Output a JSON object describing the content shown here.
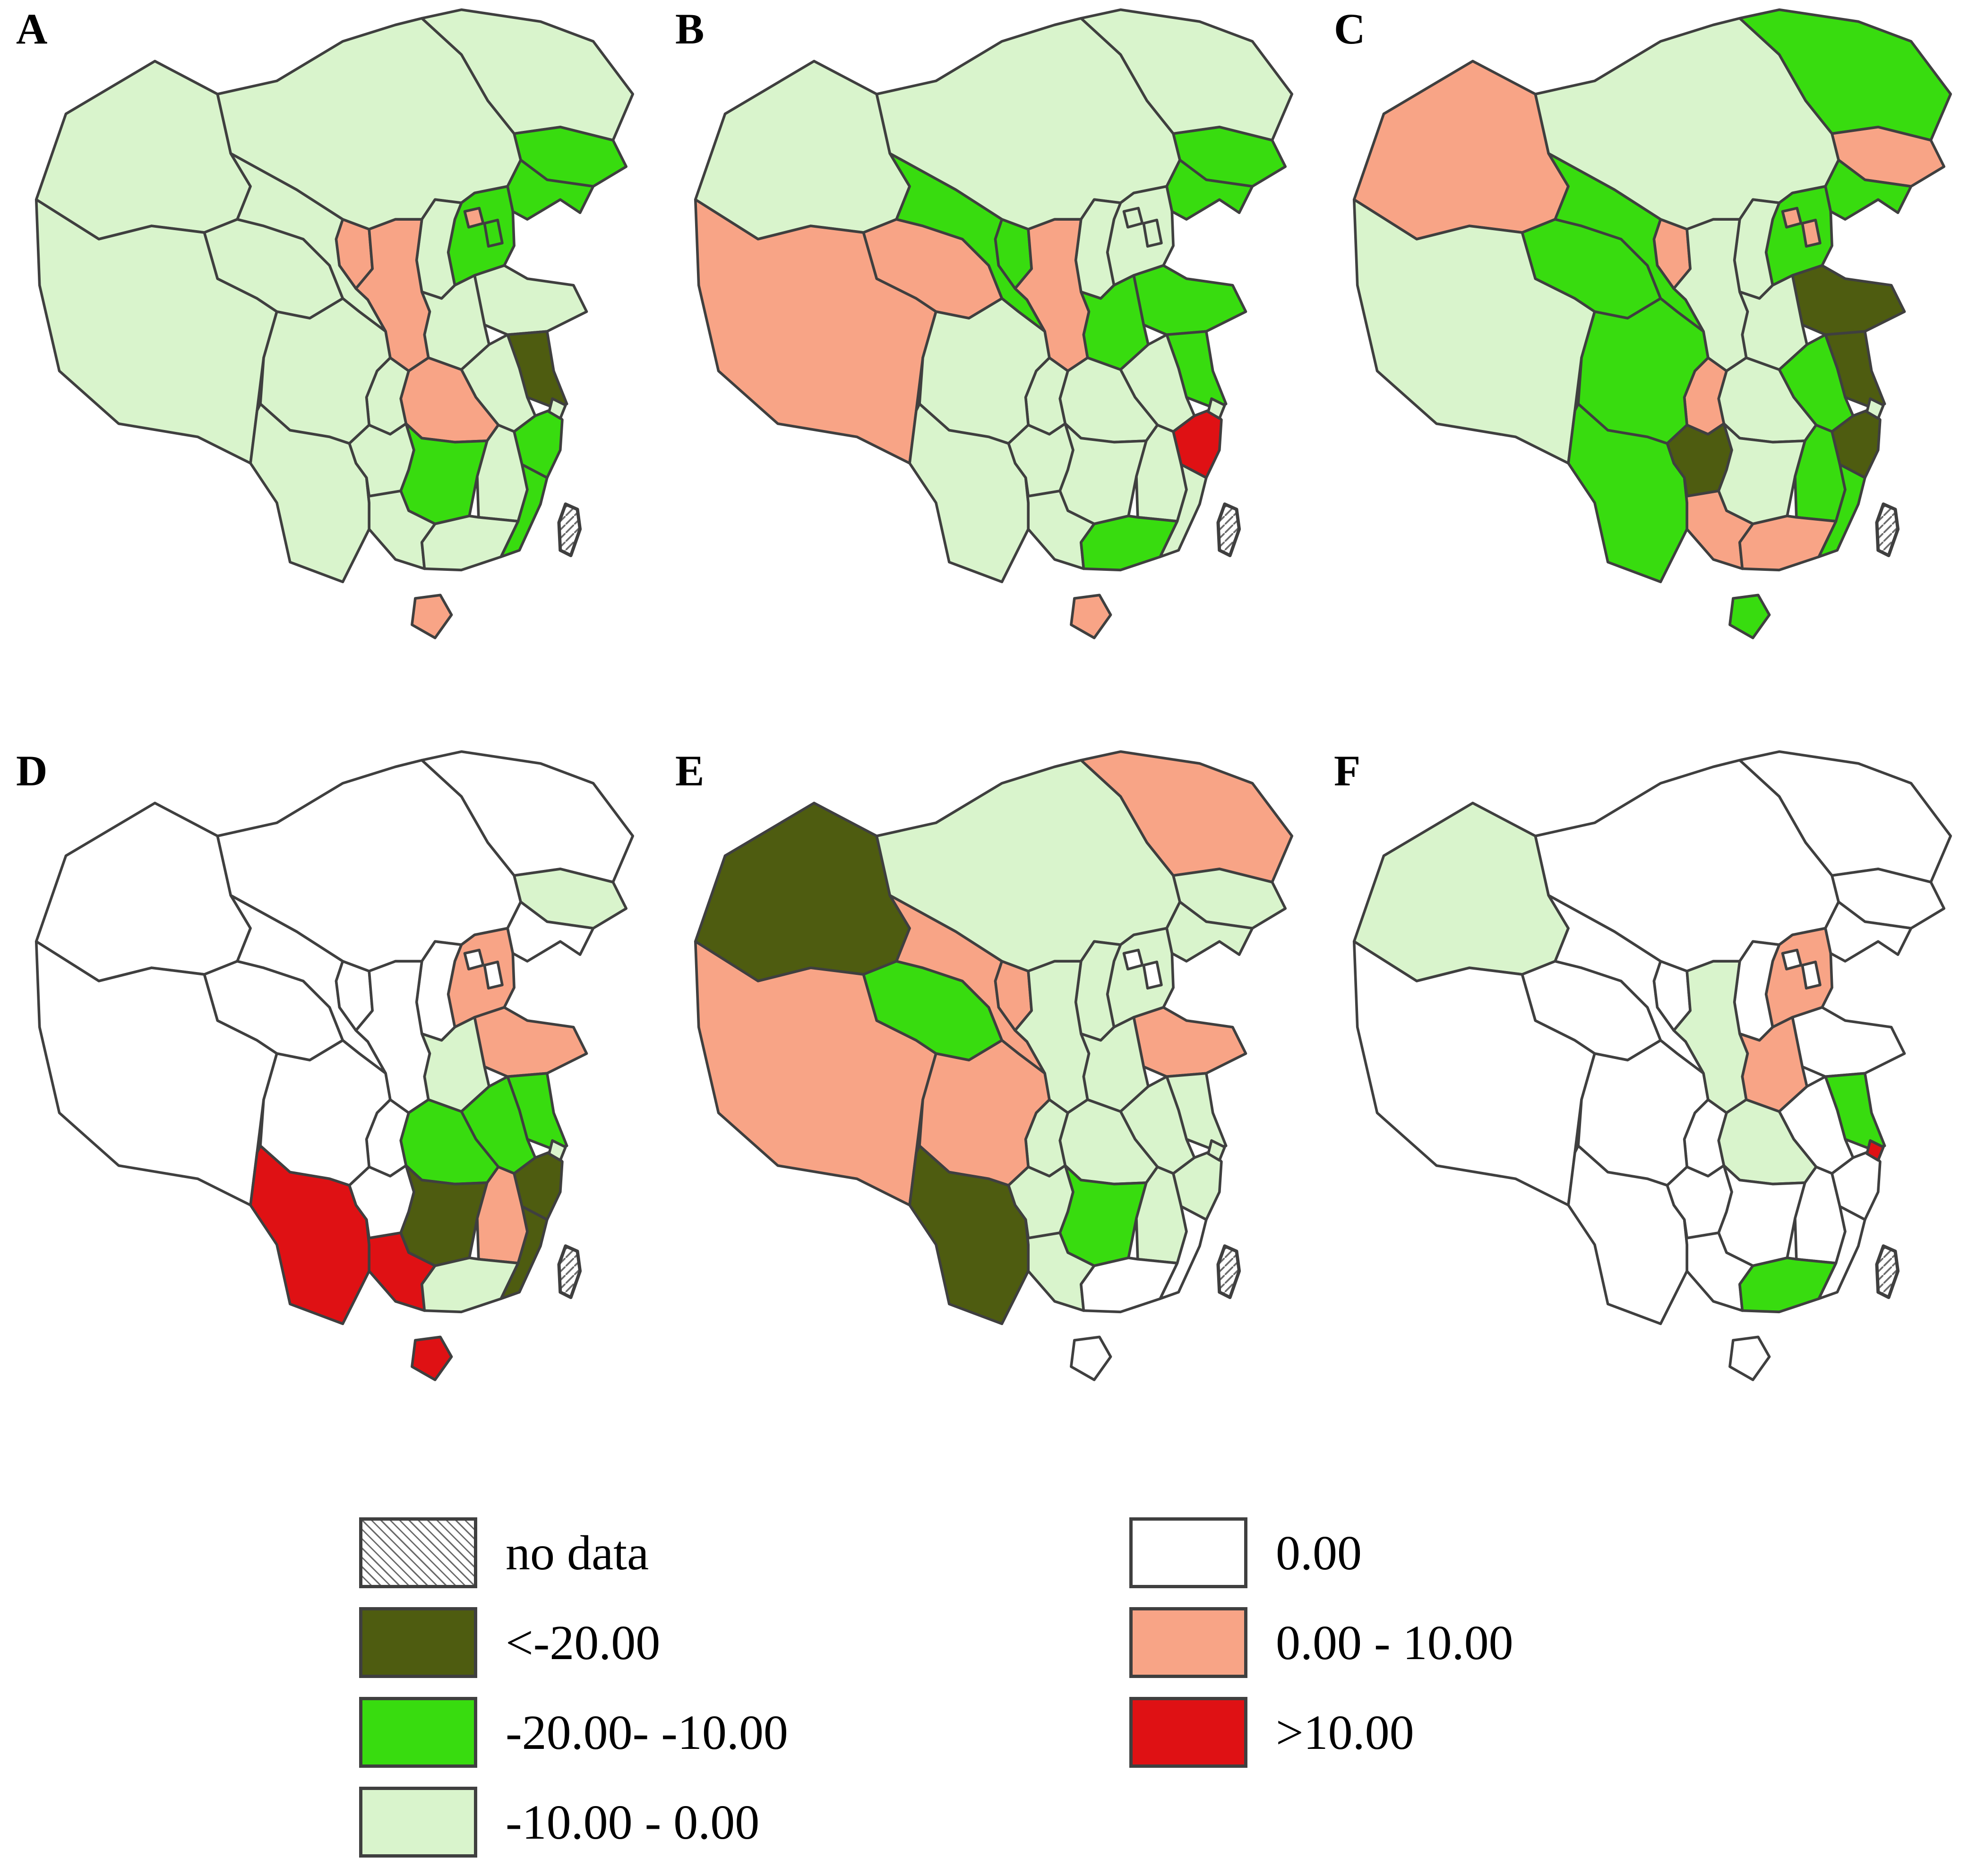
{
  "figure": {
    "type": "choropleth small multiples",
    "region": "China, province level",
    "panel_labels": [
      "A",
      "B",
      "C",
      "D",
      "E",
      "F"
    ]
  },
  "categories": {
    "no_data": {
      "label": "no data",
      "color": "hatch"
    },
    "lt_m20": {
      "label": "<-20.00",
      "color": "#4e5c10"
    },
    "m20_m10": {
      "label": "-20.00- -10.00",
      "color": "#38dc0f"
    },
    "m10_0": {
      "label": "-10.00 - 0.00",
      "color": "#d9f4cc"
    },
    "zero": {
      "label": "0.00",
      "color": "#ffffff"
    },
    "p0_10": {
      "label": "0.00 - 10.00",
      "color": "#f8a486"
    },
    "gt10": {
      "label": ">10.00",
      "color": "#df1114"
    }
  },
  "legend": {
    "left_order": [
      "no_data",
      "lt_m20",
      "m20_m10",
      "m10_0"
    ],
    "right_order": [
      "zero",
      "p0_10",
      "gt10"
    ],
    "border_color": "#3f3f3f"
  },
  "map_style": {
    "border_color": "#3f3f3f",
    "sea": "#ffffff"
  },
  "panels": [
    {
      "label": "A",
      "provinces": {
        "Xinjiang": "m10_0",
        "Tibet": "m10_0",
        "Qinghai": "m10_0",
        "Gansu": "m10_0",
        "Ningxia": "p0_10",
        "InnerMongolia": "m10_0",
        "Heilongjiang": "m10_0",
        "Jilin": "m20_m10",
        "Liaoning": "m20_m10",
        "Hebei": "m20_m10",
        "Beijing": "p0_10",
        "Tianjin": "m20_m10",
        "Shanxi": "m10_0",
        "Shaanxi": "p0_10",
        "Shandong": "m10_0",
        "Henan": "m10_0",
        "Jiangsu": "lt_m20",
        "Anhui": "m10_0",
        "Shanghai": "m10_0",
        "Zhejiang": "m20_m10",
        "Hubei": "p0_10",
        "Chongqing": "m10_0",
        "Sichuan": "m10_0",
        "Guizhou": "m10_0",
        "Hunan": "m20_m10",
        "Jiangxi": "m10_0",
        "Fujian": "m20_m10",
        "Yunnan": "m10_0",
        "Guangxi": "m10_0",
        "Guangdong": "m10_0",
        "Hainan": "p0_10",
        "Taiwan": "no_data"
      }
    },
    {
      "label": "B",
      "provinces": {
        "Xinjiang": "m10_0",
        "Tibet": "p0_10",
        "Qinghai": "p0_10",
        "Gansu": "m20_m10",
        "Ningxia": "m20_m10",
        "InnerMongolia": "m10_0",
        "Heilongjiang": "m10_0",
        "Jilin": "m20_m10",
        "Liaoning": "m20_m10",
        "Hebei": "m10_0",
        "Beijing": "m10_0",
        "Tianjin": "m10_0",
        "Shanxi": "m10_0",
        "Shaanxi": "p0_10",
        "Shandong": "m20_m10",
        "Henan": "m20_m10",
        "Jiangsu": "m20_m10",
        "Anhui": "m10_0",
        "Shanghai": "m10_0",
        "Zhejiang": "gt10",
        "Hubei": "m10_0",
        "Chongqing": "m10_0",
        "Sichuan": "m10_0",
        "Guizhou": "m10_0",
        "Hunan": "m10_0",
        "Jiangxi": "m10_0",
        "Fujian": "m10_0",
        "Yunnan": "m10_0",
        "Guangxi": "m10_0",
        "Guangdong": "m20_m10",
        "Hainan": "p0_10",
        "Taiwan": "no_data"
      }
    },
    {
      "label": "C",
      "provinces": {
        "Xinjiang": "p0_10",
        "Tibet": "m10_0",
        "Qinghai": "m20_m10",
        "Gansu": "m20_m10",
        "Ningxia": "p0_10",
        "InnerMongolia": "m10_0",
        "Heilongjiang": "m20_m10",
        "Jilin": "p0_10",
        "Liaoning": "m20_m10",
        "Hebei": "m20_m10",
        "Beijing": "p0_10",
        "Tianjin": "p0_10",
        "Shanxi": "m10_0",
        "Shaanxi": "m10_0",
        "Shandong": "lt_m20",
        "Henan": "m10_0",
        "Jiangsu": "lt_m20",
        "Anhui": "m20_m10",
        "Shanghai": "m10_0",
        "Zhejiang": "lt_m20",
        "Hubei": "m10_0",
        "Chongqing": "p0_10",
        "Sichuan": "m20_m10",
        "Guizhou": "lt_m20",
        "Hunan": "m10_0",
        "Jiangxi": "m20_m10",
        "Fujian": "m20_m10",
        "Yunnan": "m20_m10",
        "Guangxi": "p0_10",
        "Guangdong": "p0_10",
        "Hainan": "m20_m10",
        "Taiwan": "no_data"
      }
    },
    {
      "label": "D",
      "provinces": {
        "Xinjiang": "zero",
        "Tibet": "zero",
        "Qinghai": "zero",
        "Gansu": "zero",
        "Ningxia": "zero",
        "InnerMongolia": "zero",
        "Heilongjiang": "zero",
        "Jilin": "m10_0",
        "Liaoning": "zero",
        "Hebei": "p0_10",
        "Beijing": "zero",
        "Tianjin": "zero",
        "Shanxi": "zero",
        "Shaanxi": "zero",
        "Shandong": "p0_10",
        "Henan": "m10_0",
        "Jiangsu": "m20_m10",
        "Anhui": "m20_m10",
        "Shanghai": "m10_0",
        "Zhejiang": "lt_m20",
        "Hubei": "m20_m10",
        "Chongqing": "zero",
        "Sichuan": "zero",
        "Guizhou": "zero",
        "Hunan": "lt_m20",
        "Jiangxi": "p0_10",
        "Fujian": "lt_m20",
        "Yunnan": "gt10",
        "Guangxi": "gt10",
        "Guangdong": "m10_0",
        "Hainan": "gt10",
        "Taiwan": "no_data"
      }
    },
    {
      "label": "E",
      "provinces": {
        "Xinjiang": "lt_m20",
        "Tibet": "p0_10",
        "Qinghai": "m20_m10",
        "Gansu": "p0_10",
        "Ningxia": "p0_10",
        "InnerMongolia": "m10_0",
        "Heilongjiang": "p0_10",
        "Jilin": "m10_0",
        "Liaoning": "m10_0",
        "Hebei": "m10_0",
        "Beijing": "zero",
        "Tianjin": "zero",
        "Shanxi": "m10_0",
        "Shaanxi": "m10_0",
        "Shandong": "p0_10",
        "Henan": "m10_0",
        "Jiangsu": "m10_0",
        "Anhui": "m10_0",
        "Shanghai": "m10_0",
        "Zhejiang": "m10_0",
        "Hubei": "m10_0",
        "Chongqing": "m10_0",
        "Sichuan": "p0_10",
        "Guizhou": "m10_0",
        "Hunan": "m20_m10",
        "Jiangxi": "m10_0",
        "Fujian": "zero",
        "Yunnan": "lt_m20",
        "Guangxi": "m10_0",
        "Guangdong": "zero",
        "Hainan": "zero",
        "Taiwan": "no_data"
      }
    },
    {
      "label": "F",
      "provinces": {
        "Xinjiang": "m10_0",
        "Tibet": "zero",
        "Qinghai": "zero",
        "Gansu": "zero",
        "Ningxia": "zero",
        "InnerMongolia": "zero",
        "Heilongjiang": "zero",
        "Jilin": "zero",
        "Liaoning": "zero",
        "Hebei": "p0_10",
        "Beijing": "zero",
        "Tianjin": "zero",
        "Shanxi": "zero",
        "Shaanxi": "m10_0",
        "Shandong": "zero",
        "Henan": "p0_10",
        "Jiangsu": "m20_m10",
        "Anhui": "zero",
        "Shanghai": "gt10",
        "Zhejiang": "zero",
        "Hubei": "m10_0",
        "Chongqing": "zero",
        "Sichuan": "zero",
        "Guizhou": "zero",
        "Hunan": "zero",
        "Jiangxi": "zero",
        "Fujian": "zero",
        "Yunnan": "zero",
        "Guangxi": "zero",
        "Guangdong": "m20_m10",
        "Hainan": "zero",
        "Taiwan": "no_data"
      }
    }
  ]
}
